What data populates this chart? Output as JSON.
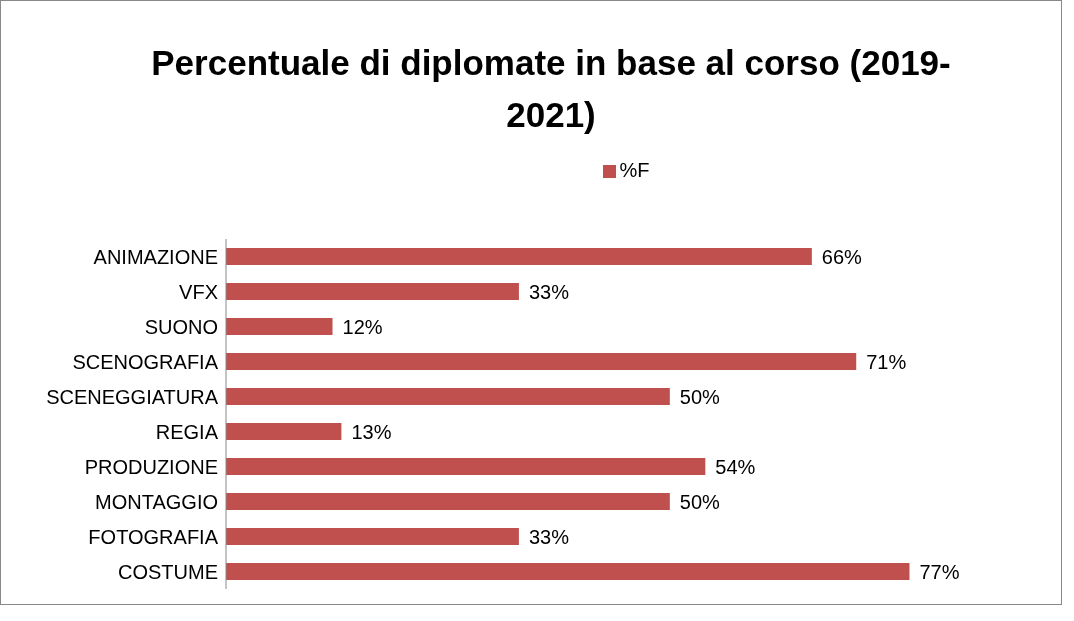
{
  "chart_data": {
    "type": "bar",
    "orientation": "horizontal",
    "title": "Percentuale di diplomate in base al corso (2019-2021)",
    "categories": [
      "ANIMAZIONE",
      "VFX",
      "SUONO",
      "SCENOGRAFIA",
      "SCENEGGIATURA",
      "REGIA",
      "PRODUZIONE",
      "MONTAGGIO",
      "FOTOGRAFIA",
      "COSTUME"
    ],
    "series": [
      {
        "name": "%F",
        "color": "#c0504d",
        "values": [
          66,
          33,
          12,
          71,
          50,
          13,
          54,
          50,
          33,
          77
        ],
        "value_labels": [
          "66%",
          "33%",
          "12%",
          "71%",
          "50%",
          "13%",
          "54%",
          "50%",
          "33%",
          "77%"
        ]
      }
    ],
    "legend": "top",
    "grid": false
  }
}
